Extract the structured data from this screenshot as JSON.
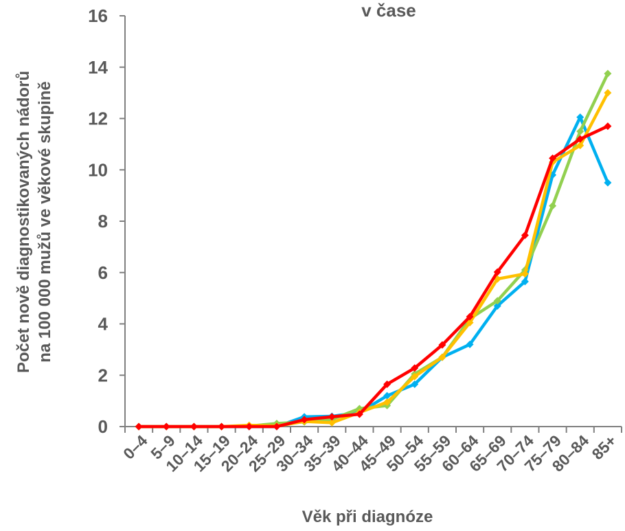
{
  "chart_data": {
    "type": "line",
    "title": "v čase",
    "xlabel": "Věk při diagnóze",
    "ylabel_lines": [
      "Počet nově diagnostikovaných nádorů",
      "na 100 000 mužů ve věkové skupině"
    ],
    "categories": [
      "0–4",
      "5–9",
      "10–14",
      "15–19",
      "20–24",
      "25–29",
      "30–34",
      "35–39",
      "40–44",
      "45–49",
      "50–54",
      "55–59",
      "60–64",
      "65–69",
      "70–74",
      "75–79",
      "80–84",
      "85+"
    ],
    "ylim": [
      0,
      16
    ],
    "yticks": [
      "0",
      "2",
      "4",
      "6",
      "8",
      "10",
      "12",
      "14",
      "16"
    ],
    "grid": false,
    "legend": "none",
    "series": [
      {
        "color": "#00b0f0",
        "values": [
          0,
          0,
          0,
          0,
          0,
          0,
          0.38,
          0.4,
          0.55,
          1.2,
          1.65,
          2.7,
          3.2,
          4.7,
          5.65,
          9.8,
          12.05,
          9.5
        ]
      },
      {
        "color": "#92d050",
        "values": [
          0,
          0,
          0,
          0,
          0.02,
          0.12,
          0.18,
          0.28,
          0.7,
          0.82,
          2.05,
          2.7,
          4.2,
          4.9,
          6.1,
          8.6,
          11.5,
          13.75
        ]
      },
      {
        "color": "#ffc000",
        "values": [
          0,
          0,
          0,
          0,
          0.05,
          0.02,
          0.2,
          0.15,
          0.55,
          0.95,
          1.95,
          2.7,
          4.05,
          5.75,
          5.95,
          10.3,
          10.95,
          13
        ]
      },
      {
        "color": "#ff0000",
        "values": [
          0,
          0,
          0,
          0,
          0,
          0,
          0.27,
          0.38,
          0.48,
          1.65,
          2.28,
          3.18,
          4.28,
          6.02,
          7.45,
          10.45,
          11.2,
          11.7
        ]
      }
    ]
  }
}
